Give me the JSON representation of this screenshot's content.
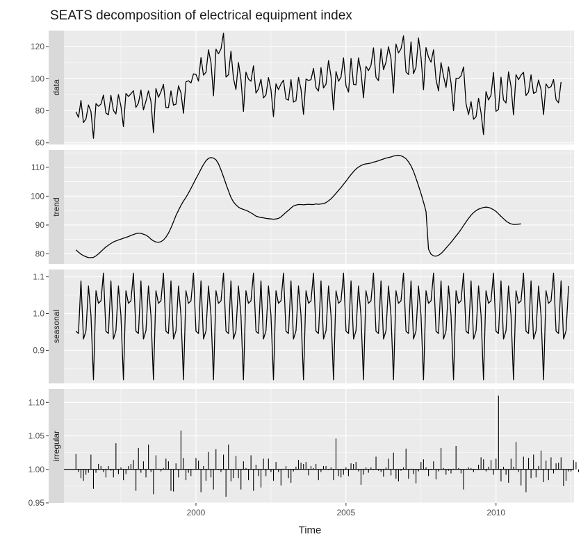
{
  "chart_data": {
    "type": "line",
    "title": "SEATS decomposition of electrical equipment index",
    "xlabel": "Time",
    "x_ticks": [
      2000,
      2005,
      2010
    ],
    "x_range": [
      1995.6,
      2012.6
    ],
    "series_start": 1996.0,
    "series_step": 0.083333,
    "grid": true,
    "panels": [
      {
        "name": "data",
        "geom": "line",
        "ylim": [
          59,
          130
        ],
        "y_ticks": [
          60,
          80,
          100,
          120
        ],
        "values": [
          79.4,
          75.9,
          86.4,
          72.7,
          74.9,
          83.6,
          79.5,
          62.8,
          84.5,
          82.8,
          84.2,
          89.8,
          78.6,
          77.5,
          89.6,
          80.2,
          78.0,
          90.1,
          83.0,
          70.1,
          90.8,
          88.9,
          90.6,
          92.5,
          82.1,
          84.8,
          92.9,
          80.6,
          86.0,
          92.4,
          85.9,
          66.3,
          93.9,
          88.4,
          91.9,
          96.5,
          82.0,
          82.0,
          92.4,
          83.5,
          84.1,
          95.6,
          91.1,
          78.4,
          98.1,
          98.7,
          97.3,
          103.0,
          102.6,
          98.5,
          113.2,
          102.2,
          104.0,
          118.0,
          110.0,
          89.4,
          118.4,
          115.5,
          118.6,
          128.4,
          101.0,
          102.5,
          117.2,
          100.3,
          93.3,
          110.1,
          99.5,
          79.6,
          104.1,
          99.8,
          98.4,
          108.0,
          91.0,
          93.6,
          99.7,
          88.0,
          89.9,
          100.7,
          93.1,
          76.3,
          96.8,
          93.2,
          96.7,
          99.1,
          87.4,
          86.6,
          99.4,
          85.4,
          86.3,
          100.8,
          93.4,
          77.8,
          99.8,
          98.9,
          99.4,
          106.4,
          94.4,
          92.3,
          106.9,
          94.2,
          96.6,
          111.3,
          101.4,
          80.5,
          104.5,
          98.4,
          101.0,
          113.0,
          95.6,
          91.6,
          112.6,
          96.5,
          96.2,
          113.0,
          104.4,
          88.1,
          107.7,
          105.0,
          108.3,
          119.2,
          100.9,
          98.8,
          118.6,
          105.6,
          110.3,
          119.9,
          112.5,
          91.1,
          121.6,
          116.1,
          118.6,
          126.7,
          104.2,
          102.6,
          123.0,
          103.1,
          107.2,
          125.4,
          113.4,
          93.1,
          119.4,
          113.4,
          110.3,
          118.0,
          99.5,
          92.4,
          110.1,
          101.5,
          94.6,
          107.4,
          97.3,
          80.1,
          100.3,
          100.1,
          101.8,
          107.3,
          84.4,
          77.6,
          85.7,
          74.7,
          76.3,
          87.8,
          78.6,
          65.2,
          92.0,
          86.7,
          89.8,
          103.9,
          79.7,
          80.8,
          100.9,
          86.7,
          84.9,
          104.3,
          95.2,
          77.4,
          102.5,
          99.4,
          102.2,
          104.0,
          89.5,
          91.6,
          102.4,
          90.8,
          91.7,
          99.2,
          93.1,
          77.6,
          96.7,
          94.2,
          95.1,
          99.5,
          86.9,
          85.0,
          98.0
        ]
      },
      {
        "name": "trend",
        "geom": "line",
        "ylim": [
          76.5,
          116
        ],
        "y_ticks": [
          80,
          90,
          100,
          110
        ],
        "values": [
          81.4,
          80.6,
          79.9,
          79.4,
          79.0,
          78.7,
          78.7,
          78.8,
          79.3,
          80.0,
          80.8,
          81.6,
          82.4,
          83.0,
          83.6,
          84.1,
          84.5,
          84.8,
          85.1,
          85.4,
          85.7,
          86.0,
          86.4,
          86.7,
          87.0,
          87.2,
          87.1,
          86.8,
          86.5,
          85.9,
          85.1,
          84.5,
          84.1,
          84.0,
          84.2,
          84.8,
          85.8,
          87.2,
          89.0,
          91.1,
          93.3,
          95.1,
          96.8,
          98.3,
          99.6,
          101.1,
          102.7,
          104.4,
          106.1,
          107.7,
          109.4,
          111.0,
          112.3,
          113.1,
          113.4,
          113.2,
          112.6,
          111.2,
          109.1,
          106.7,
          104.2,
          101.8,
          99.6,
          98.0,
          97.0,
          96.2,
          95.7,
          95.4,
          95.1,
          94.7,
          94.2,
          93.7,
          93.1,
          92.8,
          92.6,
          92.5,
          92.3,
          92.2,
          92.1,
          92.0,
          92.1,
          92.3,
          92.8,
          93.6,
          94.4,
          95.1,
          95.9,
          96.6,
          96.9,
          97.1,
          97.1,
          97.0,
          97.1,
          97.2,
          97.1,
          97.1,
          97.3,
          97.2,
          97.3,
          97.4,
          97.8,
          98.4,
          99.1,
          100.0,
          101.0,
          102.0,
          103.0,
          104.1,
          105.2,
          106.4,
          107.5,
          108.5,
          109.4,
          110.1,
          110.6,
          111.0,
          111.2,
          111.3,
          111.5,
          111.8,
          112.0,
          112.3,
          112.6,
          112.9,
          113.2,
          113.4,
          113.6,
          113.9,
          114.1,
          114.2,
          114.0,
          113.6,
          113.0,
          111.9,
          110.5,
          108.6,
          106.2,
          103.6,
          100.9,
          97.9,
          94.7,
          81.6,
          79.9,
          79.3,
          79.2,
          79.5,
          80.1,
          81.0,
          82.0,
          83.0,
          84.0,
          85.1,
          86.2,
          87.3,
          88.5,
          89.8,
          91.1,
          92.3,
          93.4,
          94.3,
          95.0,
          95.5,
          95.8,
          96.1,
          96.2,
          96.1,
          95.8,
          95.3,
          94.7,
          93.9,
          93.0,
          92.2,
          91.4,
          90.8,
          90.4,
          90.2,
          90.2,
          90.3,
          90.4
        ]
      },
      {
        "name": "seasonal",
        "geom": "line",
        "ylim": [
          0.81,
          1.12
        ],
        "y_ticks": [
          0.9,
          1.0,
          1.1
        ],
        "values": [
          0.952,
          0.946,
          1.089,
          0.931,
          0.953,
          1.075,
          0.995,
          0.82,
          1.062,
          1.028,
          1.035,
          1.11,
          0.952,
          0.946,
          1.089,
          0.931,
          0.953,
          1.075,
          0.995,
          0.82,
          1.062,
          1.028,
          1.035,
          1.11,
          0.952,
          0.946,
          1.089,
          0.931,
          0.953,
          1.075,
          0.995,
          0.82,
          1.062,
          1.028,
          1.035,
          1.11,
          0.952,
          0.946,
          1.089,
          0.931,
          0.953,
          1.075,
          0.995,
          0.82,
          1.062,
          1.028,
          1.035,
          1.11,
          0.952,
          0.946,
          1.089,
          0.931,
          0.953,
          1.075,
          0.995,
          0.82,
          1.062,
          1.028,
          1.035,
          1.11,
          0.952,
          0.946,
          1.089,
          0.931,
          0.953,
          1.075,
          0.995,
          0.82,
          1.062,
          1.028,
          1.035,
          1.11,
          0.952,
          0.946,
          1.089,
          0.931,
          0.953,
          1.075,
          0.995,
          0.82,
          1.062,
          1.028,
          1.035,
          1.11,
          0.952,
          0.946,
          1.089,
          0.931,
          0.953,
          1.075,
          0.995,
          0.82,
          1.062,
          1.028,
          1.035,
          1.11,
          0.952,
          0.946,
          1.089,
          0.931,
          0.953,
          1.075,
          0.995,
          0.82,
          1.062,
          1.028,
          1.035,
          1.11,
          0.952,
          0.946,
          1.089,
          0.931,
          0.953,
          1.075,
          0.995,
          0.82,
          1.062,
          1.028,
          1.035,
          1.11,
          0.952,
          0.946,
          1.089,
          0.931,
          0.953,
          1.075,
          0.995,
          0.82,
          1.062,
          1.028,
          1.035,
          1.11,
          0.952,
          0.946,
          1.089,
          0.931,
          0.953,
          1.075,
          0.995,
          0.82,
          1.062,
          1.028,
          1.035,
          1.11,
          0.952,
          0.946,
          1.089,
          0.931,
          0.953,
          1.075,
          0.995,
          0.82,
          1.062,
          1.028,
          1.035,
          1.11,
          0.952,
          0.946,
          1.089,
          0.931,
          0.953,
          1.075,
          0.995,
          0.82,
          1.062,
          1.028,
          1.035,
          1.11,
          0.952,
          0.946,
          1.089,
          0.931,
          0.953,
          1.075,
          0.995,
          0.82,
          1.062,
          1.028,
          1.035,
          1.11,
          0.952,
          0.946,
          1.089,
          0.931,
          0.953,
          1.075,
          0.995,
          0.82,
          1.062,
          1.028,
          1.035,
          1.11,
          0.952,
          0.946,
          1.089,
          0.931,
          0.953,
          1.075
        ]
      },
      {
        "name": "irregular",
        "geom": "bars",
        "baseline": 1.0,
        "ylim": [
          0.95,
          1.12
        ],
        "y_ticks": [
          0.95,
          1.0,
          1.05,
          1.1
        ],
        "values": [
          1.023,
          0.996,
          0.987,
          0.983,
          0.992,
          0.995,
          1.022,
          0.971,
          0.995,
          1.008,
          1.005,
          0.996,
          0.988,
          1.005,
          0.998,
          0.988,
          1.039,
          0.993,
          1.003,
          0.984,
          0.993,
          1.005,
          1.008,
          1.014,
          0.968,
          1.032,
          0.995,
          1.012,
          0.988,
          1.037,
          0.996,
          0.963,
          1.021,
          1.001,
          0.997,
          1.002,
          1.016,
          1.012,
          0.968,
          0.967,
          1.009,
          0.988,
          1.058,
          1.017,
          0.984,
          0.995,
          0.99,
          1.0,
          1.017,
          1.013,
          0.966,
          1.005,
          0.983,
          1.026,
          0.988,
          0.97,
          1.03,
          0.999,
          0.996,
          1.022,
          0.959,
          1.037,
          0.982,
          0.987,
          1.02,
          0.987,
          0.97,
          1.012,
          1.002,
          0.984,
          1.021,
          0.968,
          1.007,
          0.99,
          0.973,
          1.016,
          0.99,
          1.016,
          0.996,
          0.983,
          1.011,
          0.996,
          0.976,
          1.001,
          1.005,
          0.987,
          0.98,
          0.997,
          1.004,
          1.014,
          1.01,
          1.008,
          1.011,
          0.991,
          1.005,
          1.002,
          1.008,
          0.984,
          0.996,
          1.005,
          1.005,
          0.999,
          1.003,
          0.984,
          1.046,
          0.99,
          0.988,
          0.992,
          1.003,
          0.99,
          1.009,
          1.008,
          1.011,
          0.997,
          0.977,
          0.992,
          1.003,
          0.995,
          1.003,
          0.999,
          1.019,
          0.998,
          0.996,
          0.989,
          1.003,
          1.016,
          0.991,
          1.025,
          0.986,
          0.982,
          0.998,
          1.003,
          1.031,
          0.986,
          1.001,
          0.993,
          0.979,
          0.997,
          1.011,
          1.015,
          1.003,
          0.99,
          0.999,
          1.012,
          0.985,
          0.997,
          1.032,
          1.002,
          0.992,
          0.998,
          0.994,
          1.001,
          1.035,
          1.002,
          0.994,
          0.97,
          1.001,
          1.003,
          1.002,
          0.996,
          1.0,
          1.007,
          1.018,
          1.015,
          0.997,
          1.004,
          1.014,
          0.992,
          1.016,
          1.11,
          0.982,
          1.004,
          0.992,
          0.98,
          1.016,
          1.004,
          1.041,
          0.996,
          0.976,
          1.019,
          0.966,
          1.017,
          0.987,
          1.022,
          0.988,
          1.005,
          1.028,
          0.981,
          1.013,
          0.984,
          1.018,
          0.994,
          1.009,
          1.01,
          1.018,
          0.975,
          0.983,
          0.997,
          0.997,
          1.014,
          1.011,
          0.996
        ]
      }
    ]
  }
}
